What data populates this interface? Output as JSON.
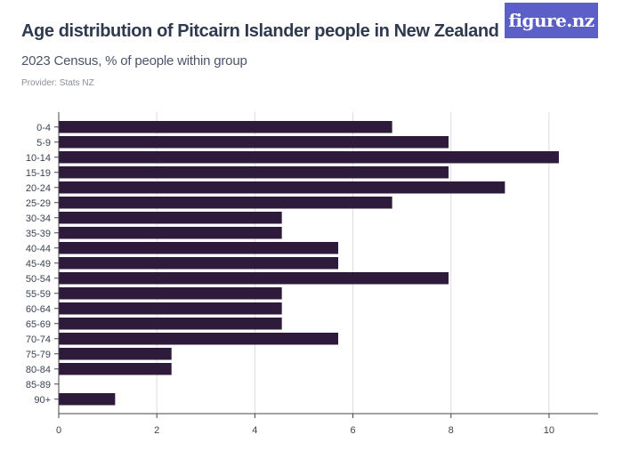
{
  "header": {
    "title": "Age distribution of Pitcairn Islander people in New Zealand",
    "subtitle": "2023 Census, % of people within group",
    "provider": "Provider: Stats NZ",
    "logo_text": "figure.nz"
  },
  "colors": {
    "bar": "#2e1a3b",
    "grid": "#dcdcdc",
    "axis": "#444444",
    "logo_bg": "#5b5fc7"
  },
  "chart_data": {
    "type": "bar",
    "orientation": "horizontal",
    "title": "Age distribution of Pitcairn Islander people in New Zealand",
    "subtitle": "2023 Census, % of people within group",
    "xlabel": "",
    "ylabel": "",
    "xlim": [
      0,
      11
    ],
    "xticks": [
      0,
      2,
      4,
      6,
      8,
      10
    ],
    "grid": "vertical",
    "categories": [
      "0-4",
      "5-9",
      "10-14",
      "15-19",
      "20-24",
      "25-29",
      "30-34",
      "35-39",
      "40-44",
      "45-49",
      "50-54",
      "55-59",
      "60-64",
      "65-69",
      "70-74",
      "75-79",
      "80-84",
      "85-89",
      "90+"
    ],
    "values": [
      6.8,
      7.95,
      10.2,
      7.95,
      9.1,
      6.8,
      4.55,
      4.55,
      5.7,
      5.7,
      7.95,
      4.55,
      4.55,
      4.55,
      5.7,
      2.3,
      2.3,
      0,
      1.15
    ]
  }
}
